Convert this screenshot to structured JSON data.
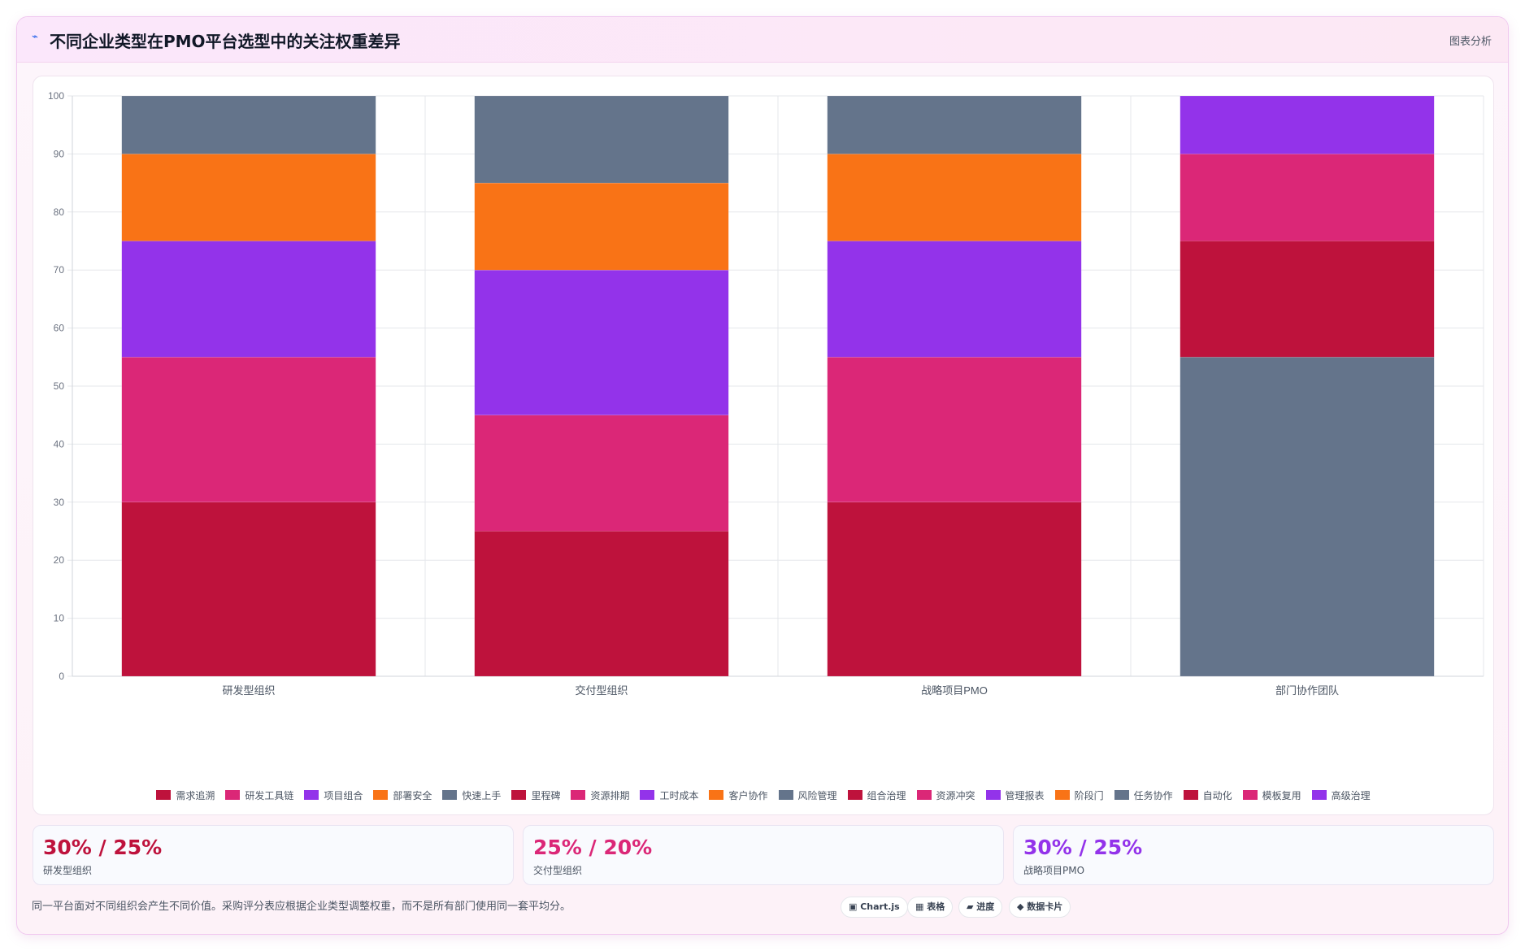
{
  "header": {
    "icon": "trend-line-icon",
    "title": "不同企业类型在PMO平台选型中的关注权重差异",
    "right_label": "图表分析"
  },
  "chart_data": {
    "type": "bar",
    "stacked": true,
    "categories": [
      "研发型组织",
      "交付型组织",
      "战略项目PMO",
      "部门协作团队"
    ],
    "ylim": [
      0,
      100
    ],
    "yticks": [
      0,
      10,
      20,
      30,
      40,
      50,
      60,
      70,
      80,
      90,
      100
    ],
    "grid": true,
    "legend_position": "bottom",
    "series": [
      {
        "name": "需求追溯",
        "color": "#be123c",
        "values": [
          30,
          0,
          0,
          0
        ]
      },
      {
        "name": "研发工具链",
        "color": "#db2777",
        "values": [
          25,
          0,
          0,
          0
        ]
      },
      {
        "name": "项目组合",
        "color": "#9333ea",
        "values": [
          20,
          0,
          0,
          0
        ]
      },
      {
        "name": "部署安全",
        "color": "#f97316",
        "values": [
          15,
          0,
          0,
          0
        ]
      },
      {
        "name": "快速上手",
        "color": "#64748b",
        "values": [
          10,
          0,
          0,
          0
        ]
      },
      {
        "name": "里程碑",
        "color": "#be123c",
        "values": [
          0,
          25,
          0,
          0
        ]
      },
      {
        "name": "资源排期",
        "color": "#db2777",
        "values": [
          0,
          20,
          0,
          0
        ]
      },
      {
        "name": "工时成本",
        "color": "#9333ea",
        "values": [
          0,
          25,
          0,
          0
        ]
      },
      {
        "name": "客户协作",
        "color": "#f97316",
        "values": [
          0,
          15,
          0,
          0
        ]
      },
      {
        "name": "风险管理",
        "color": "#64748b",
        "values": [
          0,
          15,
          0,
          0
        ]
      },
      {
        "name": "组合治理",
        "color": "#be123c",
        "values": [
          0,
          0,
          30,
          0
        ]
      },
      {
        "name": "资源冲突",
        "color": "#db2777",
        "values": [
          0,
          0,
          25,
          0
        ]
      },
      {
        "name": "管理报表",
        "color": "#9333ea",
        "values": [
          0,
          0,
          20,
          0
        ]
      },
      {
        "name": "阶段门",
        "color": "#f97316",
        "values": [
          0,
          0,
          15,
          0
        ]
      },
      {
        "name": "任务协作",
        "color": "#64748b",
        "values": [
          0,
          0,
          10,
          55
        ]
      },
      {
        "name": "自动化",
        "color": "#be123c",
        "values": [
          0,
          0,
          0,
          20
        ]
      },
      {
        "name": "模板复用",
        "color": "#db2777",
        "values": [
          0,
          0,
          0,
          15
        ]
      },
      {
        "name": "高级治理",
        "color": "#9333ea",
        "values": [
          0,
          0,
          0,
          10
        ]
      }
    ]
  },
  "stats": [
    {
      "value": "30% / 25%",
      "label": "研发型组织",
      "color": "#be123c"
    },
    {
      "value": "25% / 20%",
      "label": "交付型组织",
      "color": "#db2777"
    },
    {
      "value": "30% / 25%",
      "label": "战略项目PMO",
      "color": "#9333ea"
    }
  ],
  "footer": {
    "note": "同一平台面对不同组织会产生不同价值。采购评分表应根据企业类型调整权重，而不是所有部门使用同一套平均分。",
    "pills": [
      "▣ Chart.js",
      "▦ 表格",
      "▰ 进度",
      "◆ 数据卡片"
    ]
  }
}
